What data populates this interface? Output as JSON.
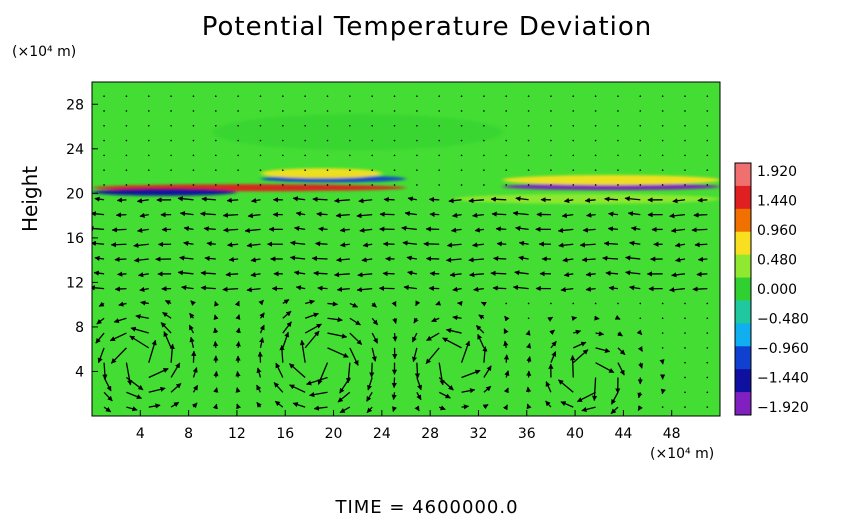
{
  "chart_data": {
    "type": "heatmap",
    "title": "Potential Temperature Deviation",
    "ylabel": "Height",
    "y_unit": "(×10⁴ m)",
    "x_unit": "(×10⁴ m)",
    "footer": "TIME  =  4600000.0",
    "xlim": [
      0,
      52
    ],
    "ylim": [
      0,
      30
    ],
    "x_ticks": [
      "4",
      "8",
      "12",
      "16",
      "20",
      "24",
      "28",
      "32",
      "36",
      "40",
      "44",
      "48"
    ],
    "y_ticks": [
      "4",
      "8",
      "12",
      "16",
      "20",
      "24",
      "28"
    ],
    "colorbar": {
      "labels": [
        "1.920",
        "1.440",
        "0.960",
        "0.480",
        "0.000",
        "−0.480",
        "−0.960",
        "−1.440",
        "−1.920"
      ],
      "range": [
        -1.92,
        1.92
      ],
      "colors": [
        "#f07070",
        "#e02020",
        "#f07000",
        "#f8e020",
        "#90e830",
        "#30d030",
        "#20c8a0",
        "#10b0f0",
        "#1040d0",
        "#1010a0",
        "#8020c0"
      ]
    },
    "background_color": "#44dd33",
    "field_bands": [
      {
        "y": 20.5,
        "x_from": 0,
        "x_to": 26,
        "value": 1.4,
        "note": "warm"
      },
      {
        "y": 20.1,
        "x_from": 0,
        "x_to": 12,
        "value": -1.6
      },
      {
        "y": 21.3,
        "x_from": 14,
        "x_to": 26,
        "value": -1.2
      },
      {
        "y": 21.8,
        "x_from": 14,
        "x_to": 24,
        "value": 0.6
      },
      {
        "y": 20.6,
        "x_from": 34,
        "x_to": 52,
        "value": -1.8
      },
      {
        "y": 21.2,
        "x_from": 34,
        "x_to": 52,
        "value": 0.7
      },
      {
        "y": 19.5,
        "x_from": 30,
        "x_to": 52,
        "value": 0.35
      },
      {
        "y": 25.5,
        "x_from": 10,
        "x_to": 34,
        "value": 0.15
      }
    ],
    "circulation_cells": [
      {
        "cx": 4,
        "cy": 5,
        "r": 4.5,
        "direction": "ccw"
      },
      {
        "cx": 19,
        "cy": 5,
        "r": 5,
        "direction": "cw"
      },
      {
        "cx": 30,
        "cy": 5,
        "r": 3.5,
        "direction": "ccw"
      },
      {
        "cx": 41,
        "cy": 3.5,
        "r": 3.5,
        "direction": "cw"
      }
    ],
    "upper_flow": {
      "y_range": [
        11,
        19.5
      ],
      "direction": "leftward"
    }
  }
}
